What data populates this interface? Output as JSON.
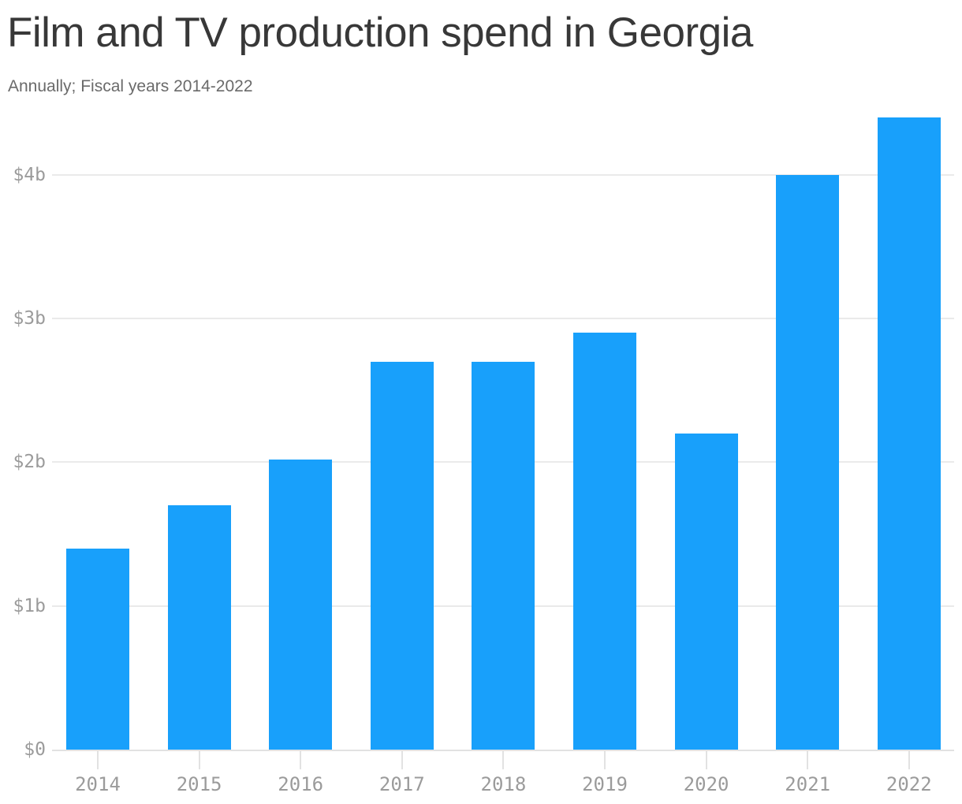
{
  "header": {
    "title": "Film and TV production spend in Georgia",
    "subtitle": "Annually; Fiscal years 2014-2022"
  },
  "chart_data": {
    "type": "bar",
    "title": "Film and TV production spend in Georgia",
    "subtitle": "Annually; Fiscal years 2014-2022",
    "categories": [
      "2014",
      "2015",
      "2016",
      "2017",
      "2018",
      "2019",
      "2020",
      "2021",
      "2022"
    ],
    "values": [
      1.4,
      1.7,
      2.02,
      2.7,
      2.7,
      2.9,
      2.2,
      4.0,
      4.4
    ],
    "value_unit": "billions of dollars",
    "xlabel": "",
    "ylabel": "",
    "y_ticks": [
      {
        "value": 0,
        "label": "$0"
      },
      {
        "value": 1,
        "label": "$1b"
      },
      {
        "value": 2,
        "label": "$2b"
      },
      {
        "value": 3,
        "label": "$3b"
      },
      {
        "value": 4,
        "label": "$4b"
      }
    ],
    "ylim": [
      0,
      4.45
    ],
    "grid": true,
    "legend": "none",
    "colors": {
      "bar": "#18a0fb",
      "gridline": "#eaeaea",
      "axis_line": "#e2e2e2",
      "tick_label": "#9b9b9b",
      "title": "#383838",
      "subtitle": "#6a6a6a"
    }
  }
}
